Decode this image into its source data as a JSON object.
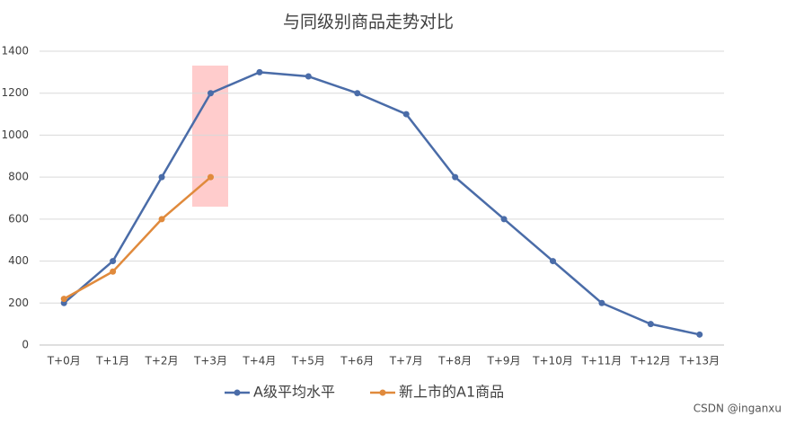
{
  "chart_data": {
    "type": "line",
    "title": "与同级别商品走势对比",
    "categories": [
      "T+0月",
      "T+1月",
      "T+2月",
      "T+3月",
      "T+4月",
      "T+5月",
      "T+6月",
      "T+7月",
      "T+8月",
      "T+9月",
      "T+10月",
      "T+11月",
      "T+12月",
      "T+13月"
    ],
    "series": [
      {
        "name": "A级平均水平",
        "color": "#4a6ca8",
        "values": [
          200,
          400,
          800,
          1200,
          1300,
          1280,
          1200,
          1100,
          800,
          600,
          400,
          200,
          100,
          50
        ]
      },
      {
        "name": "新上市的A1商品",
        "color": "#e08a3c",
        "values": [
          220,
          350,
          600,
          800,
          null,
          null,
          null,
          null,
          null,
          null,
          null,
          null,
          null,
          null
        ]
      }
    ],
    "ylim": [
      0,
      1400
    ],
    "yticks": [
      0,
      200,
      400,
      600,
      800,
      1000,
      1200,
      1400
    ],
    "grid": true,
    "legend": "bottom",
    "watermark": "CSDN @inganxu"
  }
}
